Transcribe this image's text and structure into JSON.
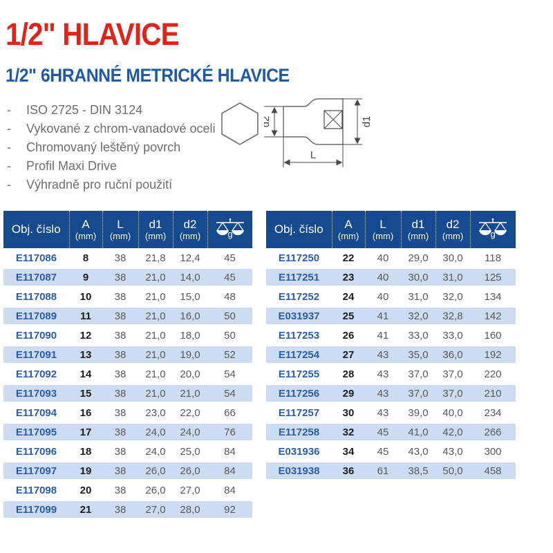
{
  "header": {
    "title": "1/2\" HLAVICE",
    "subtitle": "1/2\" 6HRANNÉ METRICKÉ HLAVICE"
  },
  "features": {
    "bullet": "-",
    "items": [
      "ISO 2725 - DIN 3124",
      "Vykované z chrom-vanadové oceli",
      "Chromovaný leštěný povrch",
      "Profil Maxi Drive",
      "Výhradně pro ruční použití"
    ]
  },
  "diagram": {
    "dim_d2": "d2",
    "dim_d1": "d1",
    "dim_L": "L"
  },
  "columns": [
    {
      "label": "Obj. číslo",
      "unit": ""
    },
    {
      "label": "A",
      "unit": "(mm)"
    },
    {
      "label": "L",
      "unit": "(mm)"
    },
    {
      "label": "d1",
      "unit": "(mm)"
    },
    {
      "label": "d2",
      "unit": "(mm)"
    },
    {
      "label": "g",
      "unit": "",
      "icon": "scale-icon"
    }
  ],
  "tables": {
    "left": {
      "rows": [
        [
          "E117086",
          "8",
          "38",
          "21,8",
          "12,4",
          "45"
        ],
        [
          "E117087",
          "9",
          "38",
          "21,0",
          "14,0",
          "45"
        ],
        [
          "E117088",
          "10",
          "38",
          "21,0",
          "15,0",
          "48"
        ],
        [
          "E117089",
          "11",
          "38",
          "21,0",
          "16,0",
          "50"
        ],
        [
          "E117090",
          "12",
          "38",
          "21,0",
          "18,0",
          "50"
        ],
        [
          "E117091",
          "13",
          "38",
          "21,0",
          "19,0",
          "52"
        ],
        [
          "E117092",
          "14",
          "38",
          "21,0",
          "20,0",
          "54"
        ],
        [
          "E117093",
          "15",
          "38",
          "21,0",
          "21,0",
          "54"
        ],
        [
          "E117094",
          "16",
          "38",
          "23,0",
          "22,0",
          "66"
        ],
        [
          "E117095",
          "17",
          "38",
          "24,0",
          "24,0",
          "76"
        ],
        [
          "E117096",
          "18",
          "38",
          "24,0",
          "25,0",
          "84"
        ],
        [
          "E117097",
          "19",
          "38",
          "26,0",
          "26,0",
          "84"
        ],
        [
          "E117098",
          "20",
          "38",
          "26,0",
          "27,0",
          "84"
        ],
        [
          "E117099",
          "21",
          "38",
          "27,0",
          "28,0",
          "92"
        ]
      ]
    },
    "right": {
      "rows": [
        [
          "E117250",
          "22",
          "40",
          "29,0",
          "30,0",
          "118"
        ],
        [
          "E117251",
          "23",
          "40",
          "30,0",
          "31,0",
          "125"
        ],
        [
          "E117252",
          "24",
          "40",
          "31,0",
          "32,0",
          "134"
        ],
        [
          "E031937",
          "25",
          "41",
          "32,0",
          "32,8",
          "142"
        ],
        [
          "E117253",
          "26",
          "41",
          "33,0",
          "33,0",
          "160"
        ],
        [
          "E117254",
          "27",
          "43",
          "35,0",
          "36,0",
          "192"
        ],
        [
          "E117255",
          "28",
          "43",
          "37,0",
          "37,0",
          "220"
        ],
        [
          "E117256",
          "29",
          "43",
          "37,0",
          "37,0",
          "210"
        ],
        [
          "E117257",
          "30",
          "43",
          "39,0",
          "40,0",
          "234"
        ],
        [
          "E117258",
          "32",
          "45",
          "41,0",
          "42,0",
          "266"
        ],
        [
          "E031936",
          "34",
          "45",
          "43,0",
          "43,0",
          "300"
        ],
        [
          "E031938",
          "36",
          "61",
          "38,5",
          "50,0",
          "458"
        ]
      ]
    }
  },
  "colors": {
    "title_red": "#e2231a",
    "heading_blue": "#1f5aa8",
    "table_header_navy": "#164a8f",
    "row_alt_blue": "#ccdcf2",
    "feature_gray": "#6d6e71",
    "value_gray": "#58585a",
    "order_number_blue": "#2a5caa"
  }
}
